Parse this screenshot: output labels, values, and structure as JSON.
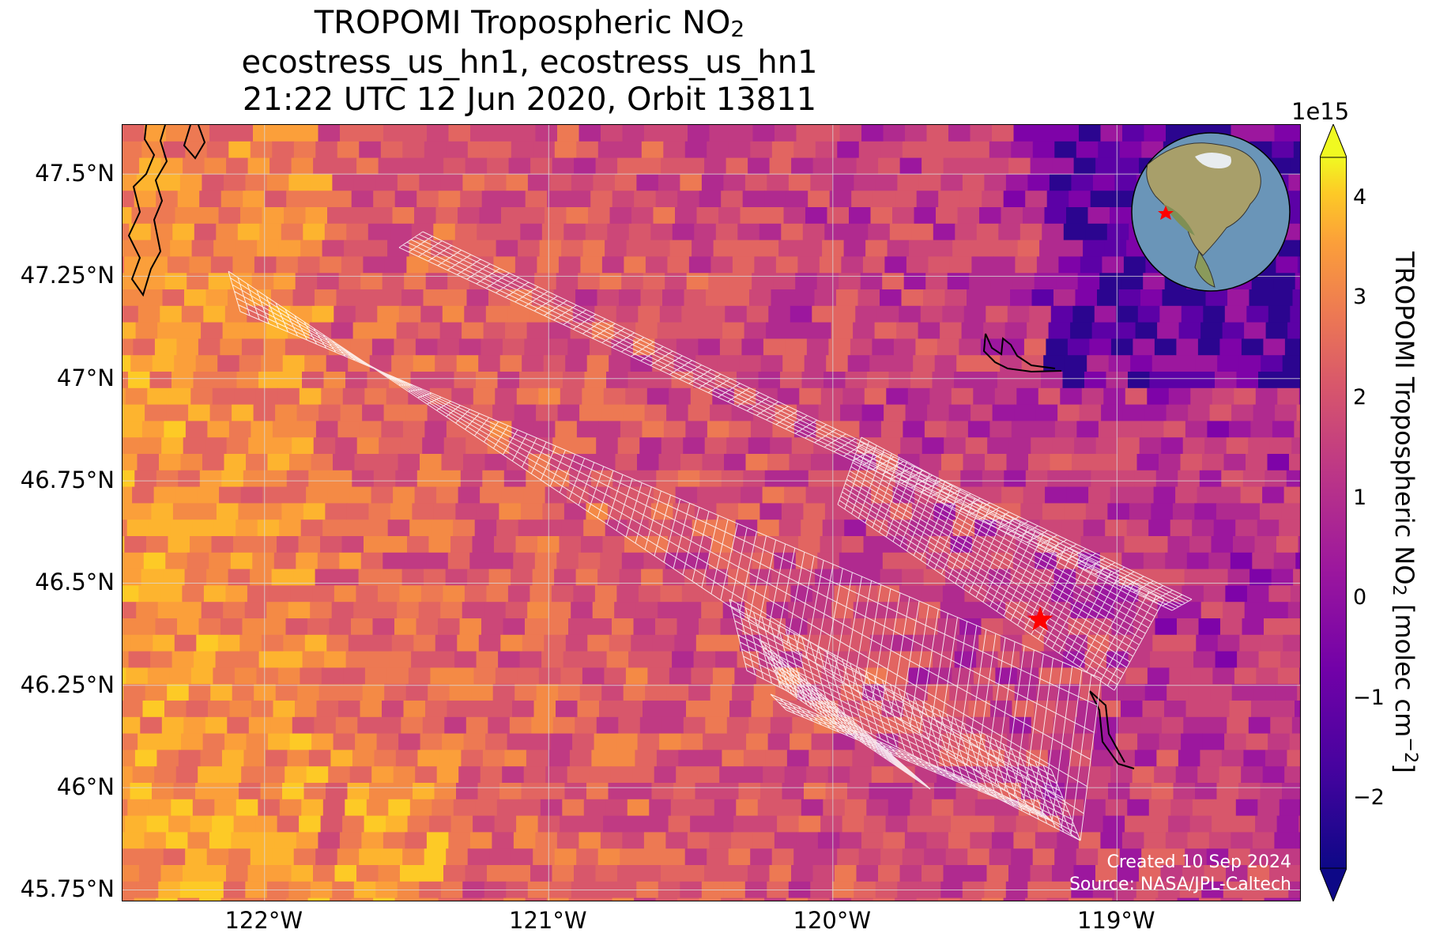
{
  "header": {
    "title_main": "TROPOMI Tropospheric NO",
    "title_sub": "2",
    "line2": "ecostress_us_hn1, ecostress_us_hn1",
    "line3": "21:22 UTC 12 Jun 2020, Orbit 13811"
  },
  "map": {
    "extent": {
      "lon": [
        -122.5,
        -118.35
      ],
      "lat": [
        45.72,
        47.62
      ]
    },
    "lat_ticks": [
      {
        "value": 47.5,
        "label": "47.5°N"
      },
      {
        "value": 47.25,
        "label": "47.25°N"
      },
      {
        "value": 47.0,
        "label": "47°N"
      },
      {
        "value": 46.75,
        "label": "46.75°N"
      },
      {
        "value": 46.5,
        "label": "46.5°N"
      },
      {
        "value": 46.25,
        "label": "46.25°N"
      },
      {
        "value": 46.0,
        "label": "46°N"
      },
      {
        "value": 45.75,
        "label": "45.75°N"
      }
    ],
    "lon_ticks": [
      {
        "value": -122,
        "label": "122°W"
      },
      {
        "value": -121,
        "label": "121°W"
      },
      {
        "value": -120,
        "label": "120°W"
      },
      {
        "value": -119,
        "label": "119°W"
      }
    ],
    "target_marker": {
      "lon": -119.27,
      "lat": 46.41,
      "color": "#ff0000",
      "icon": "star-icon"
    },
    "swath_color": "#ffffff",
    "credit_line1": "Created 10 Sep 2024",
    "credit_line2": "Source: NASA/JPL-Caltech"
  },
  "colorbar": {
    "exponent": "1e15",
    "label_main": "TROPOMI Tropospheric NO",
    "label_sub": "2",
    "label_units": " [molec cm",
    "label_sup": "−2",
    "label_end": "]",
    "range": [
      -2.7,
      4.4
    ],
    "colormap": "plasma",
    "ticks": [
      {
        "value": 4,
        "label": "4"
      },
      {
        "value": 3,
        "label": "3"
      },
      {
        "value": 2,
        "label": "2"
      },
      {
        "value": 1,
        "label": "1"
      },
      {
        "value": 0,
        "label": "0"
      },
      {
        "value": -1,
        "label": "−1"
      },
      {
        "value": -2,
        "label": "−2"
      }
    ]
  },
  "inset_globe": {
    "icon": "globe-icon",
    "marker_color": "#ff0000"
  }
}
